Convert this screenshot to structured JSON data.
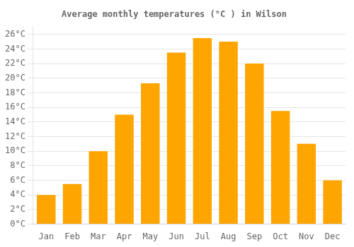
{
  "chart_data": {
    "type": "bar",
    "title": "Average monthly temperatures (°C ) in Wilson",
    "categories": [
      "Jan",
      "Feb",
      "Mar",
      "Apr",
      "May",
      "Jun",
      "Jul",
      "Aug",
      "Sep",
      "Oct",
      "Nov",
      "Dec"
    ],
    "values": [
      4.0,
      5.5,
      10.0,
      15.0,
      19.3,
      23.5,
      25.5,
      25.0,
      22.0,
      15.5,
      11.0,
      6.0
    ],
    "color": "#FFA500",
    "ylim": [
      0,
      27
    ],
    "yticks": [
      {
        "value": 0,
        "label": "0°C"
      },
      {
        "value": 2,
        "label": "2°C"
      },
      {
        "value": 4,
        "label": "4°C"
      },
      {
        "value": 6,
        "label": "6°C"
      },
      {
        "value": 8,
        "label": "8°C"
      },
      {
        "value": 10,
        "label": "10°C"
      },
      {
        "value": 12,
        "label": "12°C"
      },
      {
        "value": 14,
        "label": "14°C"
      },
      {
        "value": 16,
        "label": "16°C"
      },
      {
        "value": 18,
        "label": "18°C"
      },
      {
        "value": 20,
        "label": "20°C"
      },
      {
        "value": 22,
        "label": "22°C"
      },
      {
        "value": 24,
        "label": "24°C"
      },
      {
        "value": 26,
        "label": "26°C"
      }
    ],
    "grid": true
  }
}
